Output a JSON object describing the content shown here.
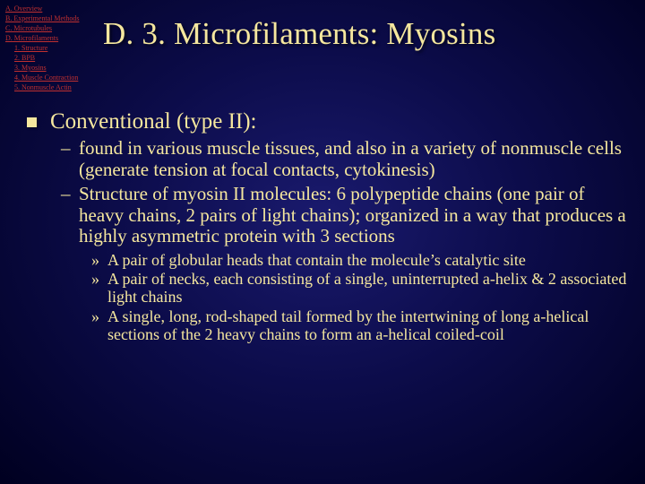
{
  "nav": {
    "a": "A. Overview",
    "b": "B. Experimental Methods",
    "c": "C. Microtubules",
    "d": "D. Microfilaments",
    "d1": "1. Structure",
    "d2": "2. BPB",
    "d3": "3. Myosins",
    "d4": "4. Muscle Contraction",
    "d5": "5. Nonmuscle Actin"
  },
  "title": "D. 3. Microfilaments: Myosins",
  "lvl1": "Conventional (type II):",
  "lvl2a": "found in various muscle tissues, and also in a variety of nonmuscle cells (generate tension at focal contacts, cytokinesis)",
  "lvl2b": "Structure of myosin II molecules: 6 polypeptide chains (one pair of heavy chains, 2 pairs of light chains); organized in a way that produces a highly asymmetric protein with 3 sections",
  "lvl3a": "A pair of globular heads that contain the molecule’s catalytic site",
  "lvl3b": "A pair of necks, each consisting of a single, uninterrupted a-helix & 2 associated light chains",
  "lvl3c": "A single, long, rod-shaped tail formed by the intertwining of long a-helical sections of the 2 heavy chains to form an a-helical coiled-coil"
}
